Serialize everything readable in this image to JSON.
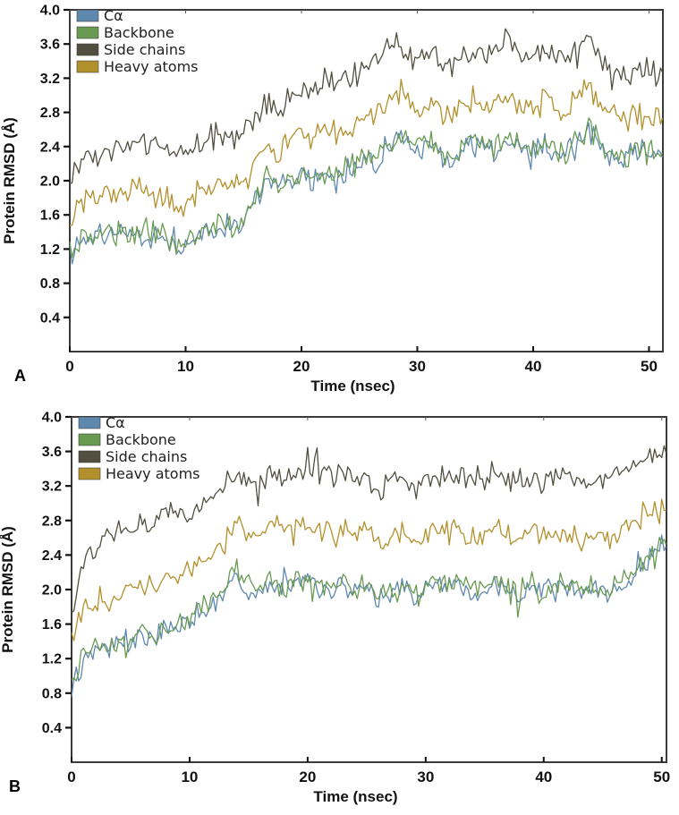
{
  "figure": {
    "description_colors": {
      "ca": "#5f88ae",
      "backbone": "#689a52",
      "side_chains": "#524f41",
      "heavy_atoms": "#b2902c",
      "spine": "#3a3a3a",
      "text": "#111111",
      "legend_text": "#1f1f1f"
    }
  },
  "chart_data": [
    {
      "panel_label": "A",
      "type": "line",
      "title": "",
      "xlabel": "Time (nsec)",
      "ylabel": "Protein RMSD (Å)",
      "xlim": [
        0,
        51.2
      ],
      "ylim": [
        0,
        4.0
      ],
      "x_ticks": [
        0,
        10,
        20,
        30,
        40,
        50
      ],
      "y_ticks": [
        0.4,
        0.8,
        1.2,
        1.6,
        2.0,
        2.4,
        2.8,
        3.2,
        3.6,
        4.0
      ],
      "grid": false,
      "legend_position": "upper-left-inside",
      "x_unit": "nsec",
      "x_start": 0,
      "x_step": 1,
      "noise": 0.085,
      "series": [
        {
          "name": "Cα",
          "key": "ca",
          "seed": 11,
          "values": [
            1.12,
            1.32,
            1.37,
            1.42,
            1.37,
            1.37,
            1.42,
            1.37,
            1.32,
            1.22,
            1.27,
            1.37,
            1.42,
            1.47,
            1.42,
            1.52,
            1.77,
            2.02,
            1.92,
            1.97,
            2.07,
            1.97,
            2.07,
            2.02,
            2.12,
            2.17,
            2.22,
            2.32,
            2.47,
            2.52,
            2.37,
            2.42,
            2.27,
            2.22,
            2.37,
            2.42,
            2.32,
            2.37,
            2.47,
            2.37,
            2.32,
            2.42,
            2.27,
            2.32,
            2.47,
            2.57,
            2.37,
            2.27,
            2.22,
            2.37,
            2.32
          ]
        },
        {
          "name": "Backbone",
          "key": "backbone",
          "seed": 12,
          "values": [
            1.15,
            1.35,
            1.4,
            1.45,
            1.4,
            1.4,
            1.45,
            1.4,
            1.35,
            1.25,
            1.3,
            1.4,
            1.45,
            1.5,
            1.45,
            1.55,
            1.8,
            2.05,
            1.95,
            2.0,
            2.1,
            2.0,
            2.1,
            2.05,
            2.15,
            2.2,
            2.25,
            2.35,
            2.5,
            2.55,
            2.4,
            2.45,
            2.3,
            2.25,
            2.4,
            2.45,
            2.35,
            2.4,
            2.5,
            2.4,
            2.35,
            2.45,
            2.3,
            2.35,
            2.5,
            2.6,
            2.4,
            2.3,
            2.25,
            2.4,
            2.35
          ]
        },
        {
          "name": " Side chains",
          "key": "side_chains",
          "seed": 13,
          "values": [
            2.0,
            2.25,
            2.3,
            2.35,
            2.4,
            2.4,
            2.45,
            2.45,
            2.4,
            2.3,
            2.35,
            2.45,
            2.5,
            2.55,
            2.5,
            2.6,
            2.75,
            2.9,
            2.8,
            2.95,
            3.1,
            3.0,
            3.15,
            3.1,
            3.2,
            3.3,
            3.35,
            3.5,
            3.65,
            3.5,
            3.4,
            3.45,
            3.35,
            3.3,
            3.45,
            3.5,
            3.45,
            3.55,
            3.65,
            3.5,
            3.45,
            3.55,
            3.4,
            3.45,
            3.55,
            3.65,
            3.4,
            3.3,
            3.25,
            3.3,
            3.25
          ]
        },
        {
          "name": "Heavy atoms",
          "key": "heavy_atoms",
          "seed": 14,
          "values": [
            1.55,
            1.75,
            1.8,
            1.85,
            1.8,
            1.85,
            1.9,
            1.85,
            1.8,
            1.7,
            1.75,
            1.85,
            1.9,
            1.95,
            1.9,
            2.0,
            2.2,
            2.4,
            2.3,
            2.45,
            2.55,
            2.5,
            2.6,
            2.55,
            2.65,
            2.7,
            2.75,
            2.85,
            3.0,
            3.05,
            2.9,
            2.95,
            2.8,
            2.75,
            2.9,
            2.95,
            2.85,
            2.9,
            3.0,
            2.9,
            2.85,
            2.95,
            2.8,
            2.85,
            3.0,
            3.15,
            2.9,
            2.8,
            2.7,
            2.8,
            2.7
          ]
        }
      ]
    },
    {
      "panel_label": "B",
      "type": "line",
      "title": "",
      "xlabel": "Time (nsec)",
      "ylabel": "Protein RMSD (Å)",
      "xlim": [
        0,
        50.4
      ],
      "ylim": [
        0,
        4.0
      ],
      "x_ticks": [
        0,
        10,
        20,
        30,
        40,
        50
      ],
      "y_ticks": [
        0.4,
        0.8,
        1.2,
        1.6,
        2.0,
        2.4,
        2.8,
        3.2,
        3.6,
        4.0
      ],
      "grid": false,
      "legend_position": "upper-left-inside",
      "x_unit": "nsec",
      "x_start": 0,
      "x_step": 1,
      "noise": 0.08,
      "series": [
        {
          "name": "Cα",
          "key": "ca",
          "seed": 21,
          "values": [
            0.87,
            1.17,
            1.27,
            1.32,
            1.37,
            1.42,
            1.47,
            1.42,
            1.52,
            1.57,
            1.62,
            1.77,
            1.87,
            1.97,
            2.22,
            1.97,
            2.02,
            2.07,
            2.02,
            2.07,
            2.12,
            2.02,
            1.97,
            2.07,
            1.97,
            2.07,
            1.87,
            1.97,
            2.02,
            1.92,
            2.02,
            2.07,
            2.02,
            2.07,
            1.97,
            2.02,
            2.07,
            1.97,
            1.92,
            2.02,
            1.97,
            2.02,
            2.07,
            1.97,
            2.02,
            1.92,
            2.02,
            2.12,
            2.27,
            2.37,
            2.47
          ]
        },
        {
          "name": "Backbone",
          "key": "backbone",
          "seed": 22,
          "values": [
            0.9,
            1.2,
            1.3,
            1.35,
            1.4,
            1.45,
            1.5,
            1.45,
            1.55,
            1.6,
            1.65,
            1.8,
            1.9,
            2.0,
            2.25,
            2.0,
            2.05,
            2.1,
            2.05,
            2.1,
            2.15,
            2.05,
            2.0,
            2.1,
            2.0,
            2.1,
            1.9,
            2.0,
            2.05,
            1.95,
            2.05,
            2.1,
            2.05,
            2.1,
            2.0,
            2.05,
            2.1,
            2.0,
            1.95,
            2.05,
            2.0,
            2.05,
            2.1,
            2.0,
            2.05,
            1.95,
            2.05,
            2.15,
            2.3,
            2.4,
            2.5
          ]
        },
        {
          "name": " Side chains",
          "key": "side_chains",
          "seed": 23,
          "values": [
            1.7,
            2.3,
            2.5,
            2.6,
            2.65,
            2.75,
            2.8,
            2.75,
            2.9,
            2.95,
            2.9,
            3.0,
            3.1,
            3.2,
            3.35,
            3.2,
            3.25,
            3.3,
            3.25,
            3.3,
            3.45,
            3.35,
            3.3,
            3.35,
            3.3,
            3.35,
            3.15,
            3.3,
            3.3,
            3.15,
            3.3,
            3.35,
            3.3,
            3.35,
            3.3,
            3.25,
            3.35,
            3.3,
            3.25,
            3.3,
            3.25,
            3.3,
            3.35,
            3.25,
            3.3,
            3.25,
            3.35,
            3.45,
            3.5,
            3.55,
            3.6
          ]
        },
        {
          "name": "Heavy atoms",
          "key": "heavy_atoms",
          "seed": 24,
          "values": [
            1.4,
            1.75,
            1.85,
            1.9,
            1.95,
            2.0,
            2.05,
            2.0,
            2.1,
            2.15,
            2.2,
            2.3,
            2.4,
            2.5,
            2.85,
            2.65,
            2.7,
            2.75,
            2.7,
            2.75,
            2.8,
            2.7,
            2.65,
            2.7,
            2.65,
            2.7,
            2.5,
            2.6,
            2.65,
            2.55,
            2.65,
            2.7,
            2.65,
            2.7,
            2.6,
            2.65,
            2.7,
            2.65,
            2.6,
            2.65,
            2.6,
            2.65,
            2.7,
            2.6,
            2.65,
            2.55,
            2.65,
            2.75,
            2.8,
            2.85,
            2.95
          ]
        }
      ]
    }
  ]
}
